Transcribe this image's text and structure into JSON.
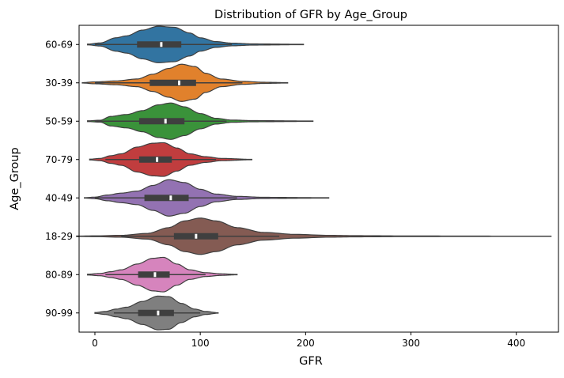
{
  "chart_data": {
    "type": "violin",
    "orientation": "horizontal",
    "title": "Distribution of GFR by Age_Group",
    "xlabel": "GFR",
    "ylabel": "Age_Group",
    "xlim": [
      -15,
      440
    ],
    "xticks": [
      0,
      100,
      200,
      300,
      400
    ],
    "grid": false,
    "categories": [
      "60-69",
      "30-39",
      "50-59",
      "70-79",
      "40-49",
      "18-29",
      "80-89",
      "90-99"
    ],
    "series": [
      {
        "category": "60-69",
        "color": "#3274a1",
        "min": -7,
        "q1": 40,
        "median": 63,
        "q3": 82,
        "max": 198,
        "whisker_low": 0,
        "whisker_high": 130,
        "density": [
          [
            -7,
            0.02
          ],
          [
            5,
            0.08
          ],
          [
            20,
            0.35
          ],
          [
            30,
            0.45
          ],
          [
            45,
            0.75
          ],
          [
            60,
            0.95
          ],
          [
            75,
            0.9
          ],
          [
            90,
            0.6
          ],
          [
            100,
            0.35
          ],
          [
            115,
            0.15
          ],
          [
            130,
            0.07
          ],
          [
            150,
            0.03
          ],
          [
            198,
            0.01
          ]
        ]
      },
      {
        "category": "30-39",
        "color": "#e1812c",
        "min": -12,
        "q1": 52,
        "median": 80,
        "q3": 96,
        "max": 183,
        "whisker_low": 0,
        "whisker_high": 140,
        "density": [
          [
            -12,
            0.01
          ],
          [
            0,
            0.05
          ],
          [
            20,
            0.1
          ],
          [
            40,
            0.2
          ],
          [
            55,
            0.45
          ],
          [
            70,
            0.75
          ],
          [
            82,
            0.97
          ],
          [
            95,
            0.85
          ],
          [
            105,
            0.5
          ],
          [
            120,
            0.2
          ],
          [
            140,
            0.08
          ],
          [
            160,
            0.03
          ],
          [
            183,
            0.01
          ]
        ]
      },
      {
        "category": "50-59",
        "color": "#3a923a",
        "min": -7,
        "q1": 42,
        "median": 67,
        "q3": 85,
        "max": 207,
        "whisker_low": 0,
        "whisker_high": 125,
        "density": [
          [
            -7,
            0.02
          ],
          [
            5,
            0.05
          ],
          [
            15,
            0.25
          ],
          [
            30,
            0.35
          ],
          [
            45,
            0.55
          ],
          [
            60,
            0.85
          ],
          [
            72,
            0.95
          ],
          [
            85,
            0.75
          ],
          [
            100,
            0.4
          ],
          [
            115,
            0.15
          ],
          [
            130,
            0.06
          ],
          [
            150,
            0.03
          ],
          [
            207,
            0.01
          ]
        ]
      },
      {
        "category": "70-79",
        "color": "#c03d3e",
        "min": -5,
        "q1": 42,
        "median": 59,
        "q3": 73,
        "max": 149,
        "whisker_low": 10,
        "whisker_high": 115,
        "density": [
          [
            -5,
            0.02
          ],
          [
            5,
            0.06
          ],
          [
            15,
            0.2
          ],
          [
            25,
            0.3
          ],
          [
            40,
            0.65
          ],
          [
            55,
            0.85
          ],
          [
            65,
            0.88
          ],
          [
            78,
            0.6
          ],
          [
            90,
            0.3
          ],
          [
            105,
            0.15
          ],
          [
            120,
            0.06
          ],
          [
            149,
            0.01
          ]
        ]
      },
      {
        "category": "40-49",
        "color": "#9372b2",
        "min": -10,
        "q1": 47,
        "median": 72,
        "q3": 89,
        "max": 222,
        "whisker_low": 0,
        "whisker_high": 135,
        "density": [
          [
            -10,
            0.01
          ],
          [
            0,
            0.04
          ],
          [
            12,
            0.15
          ],
          [
            25,
            0.25
          ],
          [
            40,
            0.35
          ],
          [
            55,
            0.65
          ],
          [
            70,
            0.95
          ],
          [
            85,
            0.8
          ],
          [
            100,
            0.45
          ],
          [
            115,
            0.2
          ],
          [
            135,
            0.08
          ],
          [
            160,
            0.03
          ],
          [
            222,
            0.01
          ]
        ]
      },
      {
        "category": "18-29",
        "color": "#845b53",
        "min": -17,
        "q1": 75,
        "median": 96,
        "q3": 117,
        "max": 433,
        "whisker_low": 25,
        "whisker_high": 175,
        "density": [
          [
            -17,
            0.01
          ],
          [
            0,
            0.02
          ],
          [
            25,
            0.05
          ],
          [
            50,
            0.15
          ],
          [
            70,
            0.45
          ],
          [
            85,
            0.8
          ],
          [
            100,
            0.95
          ],
          [
            115,
            0.8
          ],
          [
            135,
            0.45
          ],
          [
            160,
            0.2
          ],
          [
            190,
            0.1
          ],
          [
            220,
            0.05
          ],
          [
            250,
            0.03
          ],
          [
            300,
            0.015
          ],
          [
            433,
            0.005
          ]
        ]
      },
      {
        "category": "80-89",
        "color": "#d684bd",
        "min": -7,
        "q1": 41,
        "median": 57,
        "q3": 71,
        "max": 135,
        "whisker_low": 10,
        "whisker_high": 105,
        "density": [
          [
            -7,
            0.02
          ],
          [
            5,
            0.06
          ],
          [
            15,
            0.15
          ],
          [
            25,
            0.25
          ],
          [
            40,
            0.55
          ],
          [
            55,
            0.85
          ],
          [
            65,
            0.9
          ],
          [
            78,
            0.55
          ],
          [
            90,
            0.25
          ],
          [
            105,
            0.1
          ],
          [
            120,
            0.04
          ],
          [
            135,
            0.01
          ]
        ]
      },
      {
        "category": "90-99",
        "color": "#7f7f7f",
        "min": 0,
        "q1": 41,
        "median": 60,
        "q3": 75,
        "max": 117,
        "whisker_low": 18,
        "whisker_high": 100,
        "density": [
          [
            0,
            0.02
          ],
          [
            10,
            0.08
          ],
          [
            20,
            0.2
          ],
          [
            30,
            0.3
          ],
          [
            45,
            0.6
          ],
          [
            60,
            0.88
          ],
          [
            70,
            0.85
          ],
          [
            82,
            0.5
          ],
          [
            95,
            0.2
          ],
          [
            105,
            0.08
          ],
          [
            117,
            0.01
          ]
        ]
      }
    ]
  }
}
